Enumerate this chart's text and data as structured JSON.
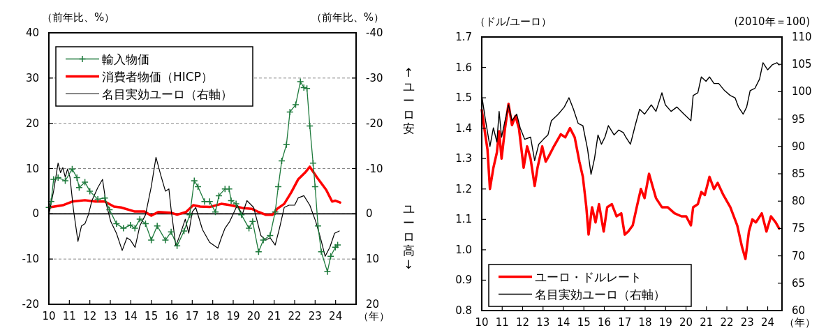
{
  "chart_data": [
    {
      "type": "line",
      "ylabel": "（前年比、%）",
      "y2label": "（前年比、%）",
      "xlabel": "（年）",
      "xlim": [
        2010,
        2025
      ],
      "xticks": [
        {
          "value": 2010,
          "label": "10"
        },
        {
          "value": 2011,
          "label": "11"
        },
        {
          "value": 2012,
          "label": "12"
        },
        {
          "value": 2013,
          "label": "13"
        },
        {
          "value": 2014,
          "label": "14"
        },
        {
          "value": 2015,
          "label": "15"
        },
        {
          "value": 2016,
          "label": "16"
        },
        {
          "value": 2017,
          "label": "17"
        },
        {
          "value": 2018,
          "label": "18"
        },
        {
          "value": 2019,
          "label": "19"
        },
        {
          "value": 2020,
          "label": "20"
        },
        {
          "value": 2021,
          "label": "21"
        },
        {
          "value": 2022,
          "label": "22"
        },
        {
          "value": 2023,
          "label": "23"
        },
        {
          "value": 2024,
          "label": "24"
        }
      ],
      "ylim": [
        -20,
        40
      ],
      "yticks": [
        -20,
        -10,
        0,
        10,
        20,
        30,
        40
      ],
      "y2lim": [
        20,
        -40
      ],
      "y2ticks": [
        -40,
        -30,
        -20,
        -10,
        0,
        10,
        20
      ],
      "grid": "y",
      "legend": "top left",
      "ref_lines": [
        {
          "axis": "y",
          "value": 0,
          "color": "#000000",
          "line_style": "solid"
        }
      ],
      "annotations": [
        "↑ユーロ安",
        "ユーロ高↓"
      ],
      "series": [
        {
          "name": "輸入物価",
          "color": "#1e7a3c",
          "marker": "cross",
          "x": [
            2010.0,
            2010.11,
            2010.23,
            2010.45,
            2010.8,
            2011.14,
            2011.37,
            2011.48,
            2011.76,
            2012.0,
            2012.39,
            2012.73,
            2012.96,
            2013.3,
            2013.64,
            2013.98,
            2014.2,
            2014.44,
            2014.72,
            2015.0,
            2015.29,
            2015.69,
            2015.97,
            2016.26,
            2016.6,
            2016.88,
            2017.1,
            2017.28,
            2017.6,
            2017.85,
            2018.13,
            2018.3,
            2018.6,
            2018.8,
            2018.9,
            2019.14,
            2019.4,
            2019.77,
            2019.95,
            2020.24,
            2020.47,
            2020.8,
            2021.05,
            2021.2,
            2021.37,
            2021.6,
            2021.77,
            2022.05,
            2022.28,
            2022.45,
            2022.6,
            2022.74,
            2022.9,
            2023.0,
            2023.14,
            2023.3,
            2023.6,
            2023.76,
            2023.99,
            2024.1
          ],
          "values": [
            1.4,
            2.7,
            7.6,
            8,
            7.3,
            9.9,
            8,
            5.8,
            7,
            5,
            3.2,
            3.5,
            0.9,
            -2.2,
            -3.2,
            -2.5,
            -3.2,
            -1.2,
            -2.2,
            -5.8,
            -2.7,
            -5.8,
            -4,
            -7.1,
            -3.8,
            -0.2,
            7.3,
            6,
            2.7,
            2.7,
            0.4,
            4,
            5.5,
            5.5,
            2.9,
            2.2,
            -0.2,
            -3.2,
            -1.7,
            -8.4,
            -5.8,
            -4.8,
            0.4,
            6,
            11.7,
            15.3,
            22.5,
            24.1,
            29.2,
            27.9,
            27.7,
            19.4,
            11.2,
            6,
            -2.7,
            -8.4,
            -12.8,
            -9.4,
            -7.4,
            -6.9
          ]
        },
        {
          "name": "消費者物価（HICP）",
          "color": "#ff0000",
          "x": [
            2010.0,
            2010.68,
            2011.14,
            2011.76,
            2012.27,
            2012.73,
            2013.18,
            2013.52,
            2014.2,
            2014.67,
            2015.0,
            2015.34,
            2016.0,
            2016.26,
            2016.7,
            2017.05,
            2017.39,
            2017.85,
            2018.42,
            2018.87,
            2019.44,
            2019.9,
            2020.24,
            2020.58,
            2020.92,
            2021.15,
            2021.49,
            2021.83,
            2022.17,
            2022.51,
            2022.74,
            2023.08,
            2023.54,
            2023.83,
            2023.99,
            2024.22
          ],
          "values": [
            1.4,
            1.9,
            2.7,
            3.0,
            2.7,
            2.7,
            1.6,
            1.4,
            0.5,
            0.5,
            -0.4,
            0.4,
            0.2,
            -0.2,
            0.4,
            1.9,
            1.6,
            1.5,
            2.2,
            1.9,
            1.3,
            1.1,
            0.4,
            -0.2,
            -0.2,
            1.1,
            2.2,
            4.7,
            7.6,
            9.1,
            10.4,
            8.1,
            5.3,
            2.7,
            2.9,
            2.5
          ]
        },
        {
          "name": "名目実効ユーロ（右軸）",
          "color": "#000000",
          "axis": "y2",
          "x": [
            2010.0,
            2010.23,
            2010.45,
            2010.57,
            2010.68,
            2010.8,
            2010.91,
            2011.03,
            2011.2,
            2011.42,
            2011.59,
            2011.76,
            2011.93,
            2012.1,
            2012.39,
            2012.62,
            2012.79,
            2013.02,
            2013.3,
            2013.58,
            2013.81,
            2013.98,
            2014.21,
            2014.44,
            2014.72,
            2015.0,
            2015.23,
            2015.46,
            2015.69,
            2015.86,
            2015.97,
            2016.2,
            2016.43,
            2016.66,
            2016.83,
            2017.0,
            2017.17,
            2017.5,
            2017.85,
            2018.25,
            2018.42,
            2018.6,
            2018.83,
            2019.2,
            2019.44,
            2019.67,
            2020.0,
            2020.35,
            2020.58,
            2020.8,
            2021.05,
            2021.26,
            2021.49,
            2021.72,
            2022.0,
            2022.17,
            2022.45,
            2022.74,
            2023.03,
            2023.26,
            2023.49,
            2023.72,
            2023.95,
            2024.18
          ],
          "values": [
            0.2,
            -5,
            -11.2,
            -9.1,
            -10.2,
            -8.1,
            -9.9,
            -8.1,
            -0.9,
            6.1,
            2.7,
            2.2,
            0.2,
            -2.9,
            -5.8,
            -7.6,
            -2.4,
            1.7,
            4.3,
            8.1,
            5.3,
            5.8,
            7.4,
            2.7,
            0.2,
            -6.0,
            -12.5,
            -8.6,
            -5,
            -5.5,
            -0.9,
            7.1,
            4.3,
            1.2,
            4.3,
            -0.4,
            -1.4,
            3.5,
            6.3,
            7.6,
            5.3,
            3.2,
            1.7,
            -1.9,
            0.2,
            -2.9,
            -1.4,
            4.8,
            5.8,
            5.3,
            6.9,
            3.2,
            -1.4,
            -1.9,
            -1.9,
            -3.5,
            -4,
            -1.9,
            1.7,
            5.3,
            9.4,
            7.4,
            4.3,
            3.8
          ]
        }
      ]
    },
    {
      "type": "line",
      "ylabel": "（ドル/ユーロ）",
      "y2label": "(2010年＝100)",
      "xlabel": "（年）",
      "xlim": [
        2010,
        2024.7
      ],
      "xticks": [
        {
          "value": 2010,
          "label": "10"
        },
        {
          "value": 2011,
          "label": "11"
        },
        {
          "value": 2012,
          "label": "12"
        },
        {
          "value": 2013,
          "label": "13"
        },
        {
          "value": 2014,
          "label": "14"
        },
        {
          "value": 2015,
          "label": "15"
        },
        {
          "value": 2016,
          "label": "16"
        },
        {
          "value": 2017,
          "label": "17"
        },
        {
          "value": 2018,
          "label": "18"
        },
        {
          "value": 2019,
          "label": "19"
        },
        {
          "value": 2020,
          "label": "20"
        },
        {
          "value": 2021,
          "label": "21"
        },
        {
          "value": 2022,
          "label": "22"
        },
        {
          "value": 2023,
          "label": "23"
        },
        {
          "value": 2024,
          "label": "24"
        }
      ],
      "ylim": [
        0.8,
        1.7
      ],
      "yticks": [
        0.8,
        0.9,
        {
          "value": 1,
          "label": "1.0"
        },
        1.1,
        1.2,
        1.3,
        1.4,
        1.5,
        1.6,
        1.7
      ],
      "y2lim": [
        60,
        110
      ],
      "y2ticks": [
        60,
        65,
        70,
        75,
        80,
        85,
        90,
        95,
        100,
        105,
        110
      ],
      "legend": "bottom left",
      "series": [
        {
          "name": "ユーロ・ドルレート",
          "color": "#ff0000",
          "x": [
            2010.0,
            2010.17,
            2010.28,
            2010.4,
            2010.57,
            2010.74,
            2010.85,
            2010.97,
            2011.14,
            2011.31,
            2011.48,
            2011.65,
            2011.82,
            2012.05,
            2012.22,
            2012.39,
            2012.59,
            2012.73,
            2012.96,
            2013.13,
            2013.3,
            2013.53,
            2013.87,
            2014.09,
            2014.32,
            2014.55,
            2014.78,
            2014.95,
            2015.12,
            2015.23,
            2015.4,
            2015.57,
            2015.74,
            2015.97,
            2016.14,
            2016.37,
            2016.6,
            2016.83,
            2017.0,
            2017.17,
            2017.39,
            2017.62,
            2017.79,
            2017.97,
            2018.19,
            2018.36,
            2018.53,
            2018.82,
            2019.1,
            2019.44,
            2019.78,
            2020.01,
            2020.24,
            2020.35,
            2020.58,
            2020.75,
            2020.92,
            2021.15,
            2021.37,
            2021.55,
            2021.83,
            2022.17,
            2022.51,
            2022.74,
            2022.91,
            2023.08,
            2023.25,
            2023.42,
            2023.71,
            2023.94,
            2024.16,
            2024.39,
            2024.56
          ],
          "values": [
            1.46,
            1.38,
            1.33,
            1.2,
            1.27,
            1.32,
            1.39,
            1.3,
            1.4,
            1.48,
            1.41,
            1.44,
            1.4,
            1.27,
            1.34,
            1.3,
            1.21,
            1.27,
            1.34,
            1.29,
            1.31,
            1.34,
            1.38,
            1.37,
            1.4,
            1.37,
            1.29,
            1.24,
            1.14,
            1.05,
            1.14,
            1.09,
            1.15,
            1.06,
            1.14,
            1.15,
            1.11,
            1.12,
            1.05,
            1.06,
            1.08,
            1.15,
            1.2,
            1.17,
            1.25,
            1.21,
            1.17,
            1.14,
            1.14,
            1.12,
            1.11,
            1.11,
            1.08,
            1.14,
            1.15,
            1.19,
            1.18,
            1.24,
            1.2,
            1.22,
            1.18,
            1.14,
            1.08,
            1.01,
            0.97,
            1.06,
            1.1,
            1.09,
            1.12,
            1.06,
            1.11,
            1.09,
            1.07
          ]
        },
        {
          "name": "名目実効ユーロ（右軸）",
          "color": "#000000",
          "axis": "y2",
          "x": [
            2010.0,
            2010.17,
            2010.34,
            2010.4,
            2010.57,
            2010.74,
            2010.85,
            2010.97,
            2011.14,
            2011.31,
            2011.48,
            2011.71,
            2011.88,
            2012.1,
            2012.39,
            2012.59,
            2012.79,
            2013.02,
            2013.24,
            2013.41,
            2013.75,
            2014.04,
            2014.27,
            2014.49,
            2014.72,
            2014.95,
            2015.18,
            2015.35,
            2015.52,
            2015.69,
            2015.86,
            2016.03,
            2016.2,
            2016.48,
            2016.71,
            2016.94,
            2017.05,
            2017.28,
            2017.51,
            2017.73,
            2017.97,
            2018.3,
            2018.53,
            2018.82,
            2018.99,
            2019.27,
            2019.55,
            2019.9,
            2020.24,
            2020.35,
            2020.58,
            2020.75,
            2020.98,
            2021.15,
            2021.37,
            2021.6,
            2021.89,
            2022.17,
            2022.4,
            2022.57,
            2022.8,
            2022.97,
            2023.14,
            2023.37,
            2023.6,
            2023.77,
            2024.0,
            2024.22,
            2024.45,
            2024.56
          ],
          "values": [
            99.3,
            95.1,
            91.3,
            90.0,
            93.4,
            90.8,
            96.4,
            91.7,
            94.7,
            97.6,
            94.7,
            95.9,
            93.4,
            91.3,
            91.7,
            87.4,
            90.4,
            91.3,
            92.1,
            94.7,
            95.9,
            97.2,
            98.9,
            96.8,
            94.2,
            93.8,
            89.5,
            84.9,
            87.8,
            92.1,
            90.4,
            91.7,
            93.8,
            92.1,
            93.0,
            92.5,
            91.7,
            90.4,
            93.8,
            96.8,
            95.9,
            97.6,
            96.4,
            99.8,
            97.6,
            96.4,
            97.2,
            95.9,
            94.7,
            99.3,
            99.8,
            102.7,
            101.9,
            102.7,
            101.5,
            101.5,
            100.2,
            99.3,
            98.9,
            97.2,
            95.9,
            97.2,
            100.2,
            100.6,
            102.3,
            105.3,
            104.0,
            104.9,
            105.3,
            104.9
          ]
        }
      ]
    }
  ]
}
